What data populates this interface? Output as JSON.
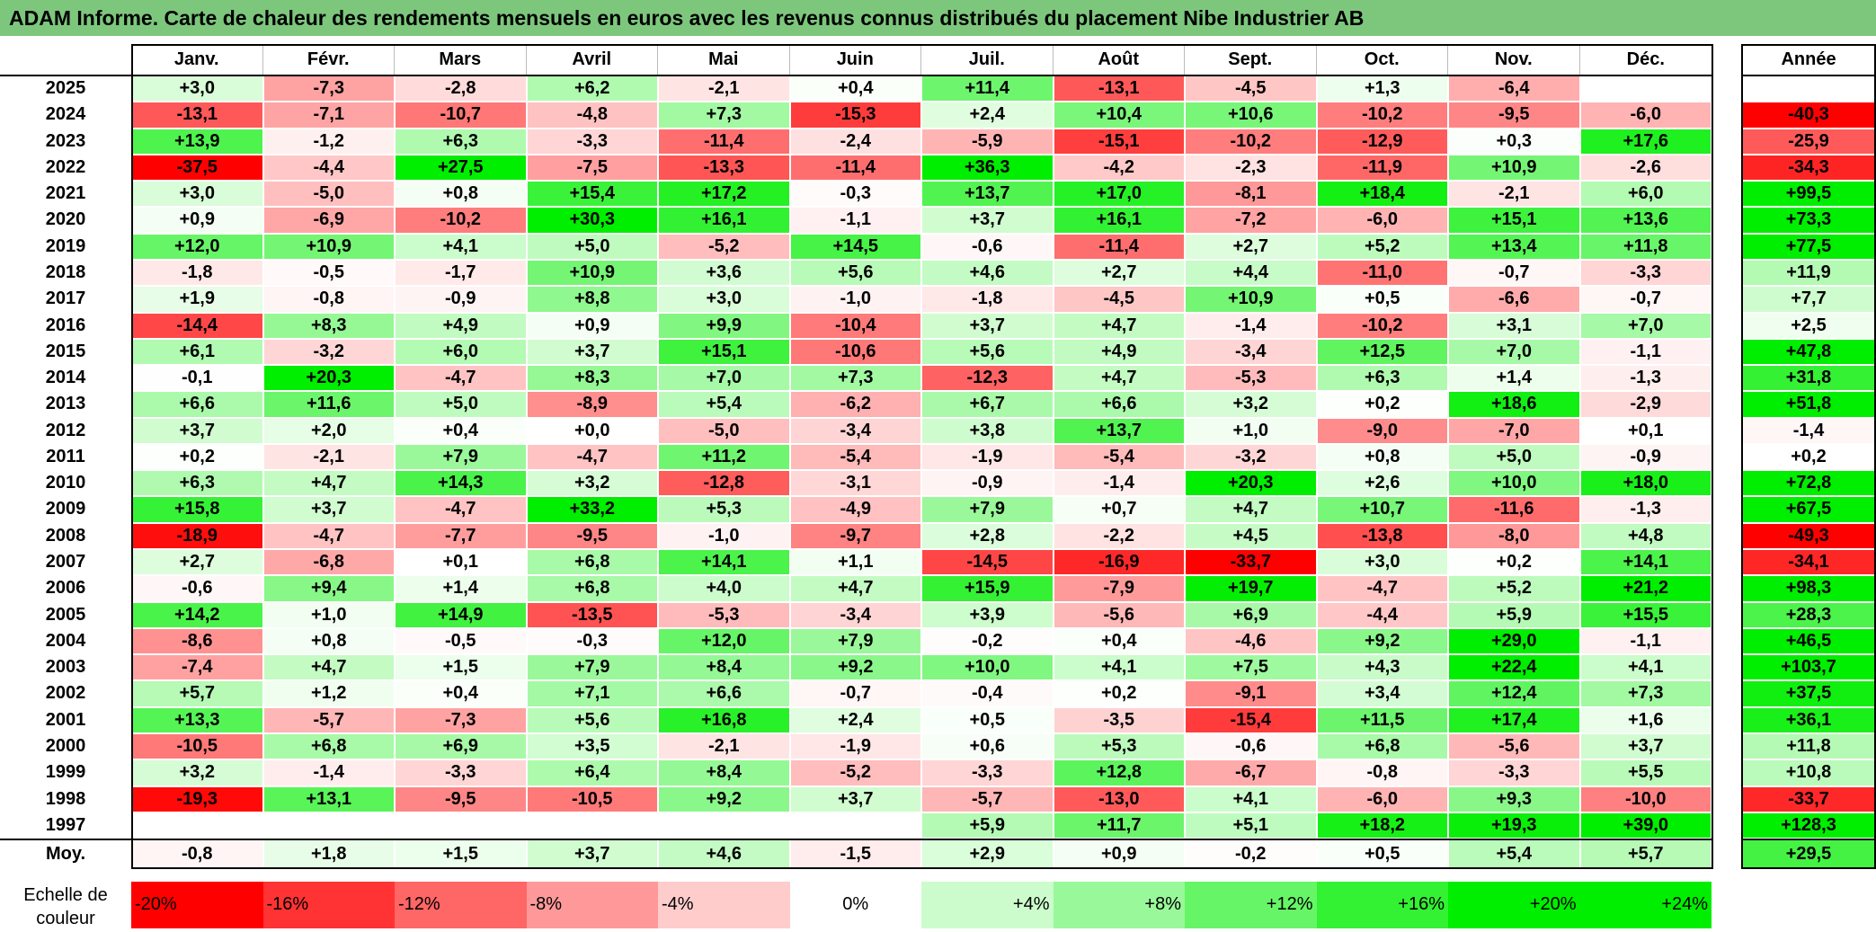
{
  "title": "ADAM Informe. Carte de chaleur des rendements mensuels en euros avec les revenus connus distribués du placement Nibe Industrier AB",
  "colors": {
    "title_bg": "#7dc77d",
    "negative": "#ff0000",
    "positive": "#00ee00",
    "neutral": "#ffffff"
  },
  "chart_data": {
    "type": "heatmap",
    "months": [
      "Janv.",
      "Févr.",
      "Mars",
      "Avril",
      "Mai",
      "Juin",
      "Juil.",
      "Août",
      "Sept.",
      "Oct.",
      "Nov.",
      "Déc."
    ],
    "year_header": "Année",
    "rows": [
      {
        "year": "2025",
        "values": [
          "+3,0",
          "-7,3",
          "-2,8",
          "+6,2",
          "-2,1",
          "+0,4",
          "+11,4",
          "-13,1",
          "-4,5",
          "+1,3",
          "-6,4",
          ""
        ],
        "annual": ""
      },
      {
        "year": "2024",
        "values": [
          "-13,1",
          "-7,1",
          "-10,7",
          "-4,8",
          "+7,3",
          "-15,3",
          "+2,4",
          "+10,4",
          "+10,6",
          "-10,2",
          "-9,5",
          "-6,0"
        ],
        "annual": "-40,3"
      },
      {
        "year": "2023",
        "values": [
          "+13,9",
          "-1,2",
          "+6,3",
          "-3,3",
          "-11,4",
          "-2,4",
          "-5,9",
          "-15,1",
          "-10,2",
          "-12,9",
          "+0,3",
          "+17,6"
        ],
        "annual": "-25,9"
      },
      {
        "year": "2022",
        "values": [
          "-37,5",
          "-4,4",
          "+27,5",
          "-7,5",
          "-13,3",
          "-11,4",
          "+36,3",
          "-4,2",
          "-2,3",
          "-11,9",
          "+10,9",
          "-2,6"
        ],
        "annual": "-34,3"
      },
      {
        "year": "2021",
        "values": [
          "+3,0",
          "-5,0",
          "+0,8",
          "+15,4",
          "+17,2",
          "-0,3",
          "+13,7",
          "+17,0",
          "-8,1",
          "+18,4",
          "-2,1",
          "+6,0"
        ],
        "annual": "+99,5"
      },
      {
        "year": "2020",
        "values": [
          "+0,9",
          "-6,9",
          "-10,2",
          "+30,3",
          "+16,1",
          "-1,1",
          "+3,7",
          "+16,1",
          "-7,2",
          "-6,0",
          "+15,1",
          "+13,6"
        ],
        "annual": "+73,3"
      },
      {
        "year": "2019",
        "values": [
          "+12,0",
          "+10,9",
          "+4,1",
          "+5,0",
          "-5,2",
          "+14,5",
          "-0,6",
          "-11,4",
          "+2,7",
          "+5,2",
          "+13,4",
          "+11,8"
        ],
        "annual": "+77,5"
      },
      {
        "year": "2018",
        "values": [
          "-1,8",
          "-0,5",
          "-1,7",
          "+10,9",
          "+3,6",
          "+5,6",
          "+4,6",
          "+2,7",
          "+4,4",
          "-11,0",
          "-0,7",
          "-3,3"
        ],
        "annual": "+11,9"
      },
      {
        "year": "2017",
        "values": [
          "+1,9",
          "-0,8",
          "-0,9",
          "+8,8",
          "+3,0",
          "-1,0",
          "-1,8",
          "-4,5",
          "+10,9",
          "+0,5",
          "-6,6",
          "-0,7"
        ],
        "annual": "+7,7"
      },
      {
        "year": "2016",
        "values": [
          "-14,4",
          "+8,3",
          "+4,9",
          "+0,9",
          "+9,9",
          "-10,4",
          "+3,7",
          "+4,7",
          "-1,4",
          "-10,2",
          "+3,1",
          "+7,0"
        ],
        "annual": "+2,5"
      },
      {
        "year": "2015",
        "values": [
          "+6,1",
          "-3,2",
          "+6,0",
          "+3,7",
          "+15,1",
          "-10,6",
          "+5,6",
          "+4,9",
          "-3,4",
          "+12,5",
          "+7,0",
          "-1,1"
        ],
        "annual": "+47,8"
      },
      {
        "year": "2014",
        "values": [
          "-0,1",
          "+20,3",
          "-4,7",
          "+8,3",
          "+7,0",
          "+7,3",
          "-12,3",
          "+4,7",
          "-5,3",
          "+6,3",
          "+1,4",
          "-1,3"
        ],
        "annual": "+31,8"
      },
      {
        "year": "2013",
        "values": [
          "+6,6",
          "+11,6",
          "+5,0",
          "-8,9",
          "+5,4",
          "-6,2",
          "+6,7",
          "+6,6",
          "+3,2",
          "+0,2",
          "+18,6",
          "-2,9"
        ],
        "annual": "+51,8"
      },
      {
        "year": "2012",
        "values": [
          "+3,7",
          "+2,0",
          "+0,4",
          "+0,0",
          "-5,0",
          "-3,4",
          "+3,8",
          "+13,7",
          "+1,0",
          "-9,0",
          "-7,0",
          "+0,1"
        ],
        "annual": "-1,4"
      },
      {
        "year": "2011",
        "values": [
          "+0,2",
          "-2,1",
          "+7,9",
          "-4,7",
          "+11,2",
          "-5,4",
          "-1,9",
          "-5,4",
          "-3,2",
          "+0,8",
          "+5,0",
          "-0,9"
        ],
        "annual": "+0,2"
      },
      {
        "year": "2010",
        "values": [
          "+6,3",
          "+4,7",
          "+14,3",
          "+3,2",
          "-12,8",
          "-3,1",
          "-0,9",
          "-1,4",
          "+20,3",
          "+2,6",
          "+10,0",
          "+18,0"
        ],
        "annual": "+72,8"
      },
      {
        "year": "2009",
        "values": [
          "+15,8",
          "+3,7",
          "-4,7",
          "+33,2",
          "+5,3",
          "-4,9",
          "+7,9",
          "+0,7",
          "+4,7",
          "+10,7",
          "-11,6",
          "-1,3"
        ],
        "annual": "+67,5"
      },
      {
        "year": "2008",
        "values": [
          "-18,9",
          "-4,7",
          "-7,7",
          "-9,5",
          "-1,0",
          "-9,7",
          "+2,8",
          "-2,2",
          "+4,5",
          "-13,8",
          "-8,0",
          "+4,8"
        ],
        "annual": "-49,3"
      },
      {
        "year": "2007",
        "values": [
          "+2,7",
          "-6,8",
          "+0,1",
          "+6,8",
          "+14,1",
          "+1,1",
          "-14,5",
          "-16,9",
          "-33,7",
          "+3,0",
          "+0,2",
          "+14,1"
        ],
        "annual": "-34,1"
      },
      {
        "year": "2006",
        "values": [
          "-0,6",
          "+9,4",
          "+1,4",
          "+6,8",
          "+4,0",
          "+4,7",
          "+15,9",
          "-7,9",
          "+19,7",
          "-4,7",
          "+5,2",
          "+21,2"
        ],
        "annual": "+98,3"
      },
      {
        "year": "2005",
        "values": [
          "+14,2",
          "+1,0",
          "+14,9",
          "-13,5",
          "-5,3",
          "-3,4",
          "+3,9",
          "-5,6",
          "+6,9",
          "-4,4",
          "+5,9",
          "+15,5"
        ],
        "annual": "+28,3"
      },
      {
        "year": "2004",
        "values": [
          "-8,6",
          "+0,8",
          "-0,5",
          "-0,3",
          "+12,0",
          "+7,9",
          "-0,2",
          "+0,4",
          "-4,6",
          "+9,2",
          "+29,0",
          "-1,1"
        ],
        "annual": "+46,5"
      },
      {
        "year": "2003",
        "values": [
          "-7,4",
          "+4,7",
          "+1,5",
          "+7,9",
          "+8,4",
          "+9,2",
          "+10,0",
          "+4,1",
          "+7,5",
          "+4,3",
          "+22,4",
          "+4,1"
        ],
        "annual": "+103,7"
      },
      {
        "year": "2002",
        "values": [
          "+5,7",
          "+1,2",
          "+0,4",
          "+7,1",
          "+6,6",
          "-0,7",
          "-0,4",
          "+0,2",
          "-9,1",
          "+3,4",
          "+12,4",
          "+7,3"
        ],
        "annual": "+37,5"
      },
      {
        "year": "2001",
        "values": [
          "+13,3",
          "-5,7",
          "-7,3",
          "+5,6",
          "+16,8",
          "+2,4",
          "+0,5",
          "-3,5",
          "-15,4",
          "+11,5",
          "+17,4",
          "+1,6"
        ],
        "annual": "+36,1"
      },
      {
        "year": "2000",
        "values": [
          "-10,5",
          "+6,8",
          "+6,9",
          "+3,5",
          "-2,1",
          "-1,9",
          "+0,6",
          "+5,3",
          "-0,6",
          "+6,8",
          "-5,6",
          "+3,7"
        ],
        "annual": "+11,8"
      },
      {
        "year": "1999",
        "values": [
          "+3,2",
          "-1,4",
          "-3,3",
          "+6,4",
          "+8,4",
          "-5,2",
          "-3,3",
          "+12,8",
          "-6,7",
          "-0,8",
          "-3,3",
          "+5,5"
        ],
        "annual": "+10,8"
      },
      {
        "year": "1998",
        "values": [
          "-19,3",
          "+13,1",
          "-9,5",
          "-10,5",
          "+9,2",
          "+3,7",
          "-5,7",
          "-13,0",
          "+4,1",
          "-6,0",
          "+9,3",
          "-10,0"
        ],
        "annual": "-33,7"
      },
      {
        "year": "1997",
        "values": [
          "",
          "",
          "",
          "",
          "",
          "",
          "+5,9",
          "+11,7",
          "+5,1",
          "+18,2",
          "+19,3",
          "+39,0"
        ],
        "annual": "+128,3"
      }
    ],
    "average": {
      "label": "Moy.",
      "values": [
        "-0,8",
        "+1,8",
        "+1,5",
        "+3,7",
        "+4,6",
        "-1,5",
        "+2,9",
        "+0,9",
        "-0,2",
        "+0,5",
        "+5,4",
        "+5,7"
      ],
      "annual": "+29,5"
    },
    "color_scale": {
      "label": "Echelle de couleur",
      "steps": [
        {
          "label": "-20%",
          "value": -20
        },
        {
          "label": "-16%",
          "value": -16
        },
        {
          "label": "-12%",
          "value": -12
        },
        {
          "label": "-8%",
          "value": -8
        },
        {
          "label": "-4%",
          "value": -4
        },
        {
          "label": "0%",
          "value": 0
        },
        {
          "label": "+4%",
          "value": 4
        },
        {
          "label": "+8%",
          "value": 8
        },
        {
          "label": "+12%",
          "value": 12
        },
        {
          "label": "+16%",
          "value": 16
        },
        {
          "label": "+20%",
          "value": 20
        },
        {
          "label": "+24%",
          "value": 24
        }
      ]
    }
  }
}
